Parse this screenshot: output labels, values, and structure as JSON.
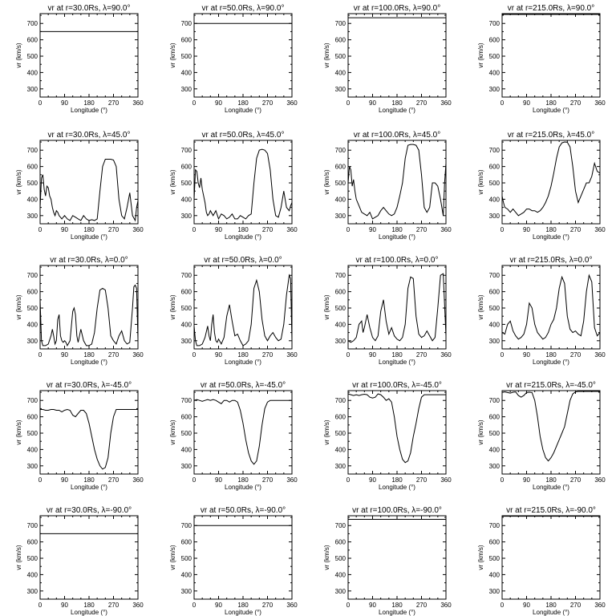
{
  "figure": {
    "x_ticks": [
      "0",
      "90",
      "180",
      "270",
      "360"
    ],
    "y_ticks": [
      "300",
      "400",
      "500",
      "600",
      "700"
    ],
    "xlabel": "Longitude (°)",
    "ylabel": "vr (km/s)"
  },
  "chart_data": [
    {
      "type": "line",
      "title": "vr at r=30.0Rs, λ=90.0°",
      "xlabel": "Longitude (°)",
      "ylabel": "vr (km/s)",
      "xlim": [
        0,
        360
      ],
      "ylim": [
        250,
        760
      ],
      "x": [
        0,
        360
      ],
      "y": [
        650,
        650
      ]
    },
    {
      "type": "line",
      "title": "vr at r=50.0Rs, λ=90.0°",
      "xlabel": "Longitude (°)",
      "ylabel": "vr (km/s)",
      "xlim": [
        0,
        360
      ],
      "ylim": [
        250,
        760
      ],
      "x": [
        0,
        360
      ],
      "y": [
        700,
        700
      ]
    },
    {
      "type": "line",
      "title": "vr at r=100.0Rs, λ=90.0°",
      "xlabel": "Longitude (°)",
      "ylabel": "vr (km/s)",
      "xlim": [
        0,
        360
      ],
      "ylim": [
        250,
        760
      ],
      "x": [
        0,
        360
      ],
      "y": [
        735,
        735
      ]
    },
    {
      "type": "line",
      "title": "vr at r=215.0Rs, λ=90.0°",
      "xlabel": "Longitude (°)",
      "ylabel": "vr (km/s)",
      "xlim": [
        0,
        360
      ],
      "ylim": [
        250,
        760
      ],
      "x": [
        0,
        360
      ],
      "y": [
        755,
        755
      ]
    },
    {
      "type": "line",
      "title": "vr at r=30.0Rs, λ=45.0°",
      "xlabel": "Longitude (°)",
      "ylabel": "vr (km/s)",
      "xlim": [
        0,
        360
      ],
      "ylim": [
        250,
        760
      ],
      "x": [
        0,
        5,
        10,
        15,
        20,
        25,
        30,
        35,
        40,
        45,
        50,
        55,
        60,
        65,
        70,
        75,
        80,
        85,
        90,
        100,
        110,
        120,
        130,
        140,
        150,
        160,
        170,
        180,
        190,
        200,
        210,
        220,
        230,
        240,
        250,
        260,
        270,
        280,
        290,
        300,
        310,
        320,
        330,
        340,
        350,
        355,
        360
      ],
      "y": [
        350,
        530,
        550,
        460,
        420,
        480,
        470,
        420,
        400,
        350,
        320,
        300,
        330,
        320,
        300,
        290,
        280,
        290,
        300,
        280,
        270,
        300,
        290,
        280,
        270,
        300,
        280,
        270,
        275,
        270,
        280,
        450,
        600,
        645,
        645,
        645,
        640,
        600,
        400,
        300,
        280,
        350,
        440,
        300,
        270,
        350,
        390
      ]
    },
    {
      "type": "line",
      "title": "vr at r=50.0Rs, λ=45.0°",
      "xlabel": "Longitude (°)",
      "ylabel": "vr (km/s)",
      "xlim": [
        0,
        360
      ],
      "ylim": [
        250,
        760
      ],
      "x": [
        0,
        5,
        10,
        15,
        20,
        25,
        30,
        35,
        40,
        45,
        50,
        55,
        60,
        70,
        80,
        90,
        100,
        110,
        120,
        130,
        140,
        150,
        160,
        170,
        180,
        190,
        200,
        210,
        220,
        230,
        240,
        250,
        260,
        270,
        280,
        290,
        300,
        310,
        320,
        330,
        340,
        350,
        355,
        360
      ],
      "y": [
        400,
        580,
        570,
        500,
        470,
        530,
        460,
        420,
        380,
        320,
        300,
        310,
        330,
        300,
        330,
        280,
        310,
        300,
        280,
        290,
        310,
        280,
        280,
        300,
        290,
        280,
        300,
        310,
        500,
        650,
        700,
        705,
        700,
        680,
        580,
        400,
        300,
        290,
        350,
        450,
        350,
        330,
        360,
        380
      ]
    },
    {
      "type": "line",
      "title": "vr at r=100.0Rs, λ=45.0°",
      "xlabel": "Longitude (°)",
      "ylabel": "vr (km/s)",
      "xlim": [
        0,
        360
      ],
      "ylim": [
        250,
        760
      ],
      "x": [
        0,
        5,
        10,
        15,
        20,
        25,
        30,
        40,
        50,
        60,
        70,
        80,
        90,
        100,
        110,
        120,
        130,
        140,
        150,
        160,
        170,
        180,
        190,
        200,
        210,
        220,
        230,
        240,
        250,
        260,
        270,
        280,
        290,
        300,
        310,
        320,
        330,
        340,
        350,
        355,
        360
      ],
      "y": [
        500,
        600,
        580,
        480,
        520,
        450,
        400,
        360,
        320,
        310,
        300,
        320,
        280,
        290,
        300,
        330,
        350,
        330,
        310,
        300,
        310,
        350,
        420,
        500,
        650,
        730,
        735,
        735,
        730,
        700,
        550,
        350,
        320,
        350,
        500,
        500,
        480,
        400,
        300,
        500,
        620
      ]
    },
    {
      "type": "line",
      "title": "vr at r=215.0Rs, λ=45.0°",
      "xlabel": "Longitude (°)",
      "ylabel": "vr (km/s)",
      "xlim": [
        0,
        360
      ],
      "ylim": [
        250,
        760
      ],
      "x": [
        0,
        5,
        10,
        20,
        30,
        40,
        50,
        60,
        70,
        80,
        90,
        100,
        110,
        120,
        130,
        140,
        150,
        160,
        170,
        180,
        190,
        200,
        210,
        220,
        230,
        240,
        250,
        260,
        270,
        280,
        290,
        300,
        310,
        320,
        330,
        340,
        350,
        360
      ],
      "y": [
        420,
        380,
        350,
        340,
        320,
        340,
        320,
        300,
        310,
        320,
        340,
        340,
        330,
        330,
        320,
        330,
        350,
        380,
        420,
        480,
        560,
        650,
        720,
        745,
        750,
        748,
        720,
        600,
        450,
        380,
        420,
        460,
        500,
        500,
        540,
        620,
        570,
        560
      ]
    },
    {
      "type": "line",
      "title": "vr at r=30.0Rs, λ=0.0°",
      "xlabel": "Longitude (°)",
      "ylabel": "vr (km/s)",
      "xlim": [
        0,
        360
      ],
      "ylim": [
        250,
        760
      ],
      "x": [
        0,
        5,
        10,
        20,
        30,
        40,
        45,
        50,
        55,
        60,
        65,
        70,
        75,
        80,
        85,
        90,
        95,
        100,
        110,
        120,
        125,
        130,
        135,
        140,
        145,
        150,
        160,
        170,
        180,
        190,
        200,
        210,
        220,
        230,
        240,
        250,
        260,
        270,
        280,
        290,
        300,
        310,
        320,
        330,
        340,
        345,
        350,
        355,
        360
      ],
      "y": [
        550,
        300,
        270,
        270,
        280,
        330,
        370,
        330,
        280,
        300,
        430,
        460,
        330,
        300,
        290,
        300,
        290,
        270,
        300,
        480,
        500,
        460,
        330,
        290,
        330,
        370,
        300,
        270,
        270,
        280,
        350,
        500,
        610,
        620,
        610,
        500,
        330,
        300,
        280,
        330,
        360,
        300,
        280,
        290,
        500,
        630,
        640,
        620,
        310
      ]
    },
    {
      "type": "line",
      "title": "vr at r=50.0Rs, λ=0.0°",
      "xlabel": "Longitude (°)",
      "ylabel": "vr (km/s)",
      "xlim": [
        0,
        360
      ],
      "ylim": [
        250,
        760
      ],
      "x": [
        0,
        5,
        10,
        20,
        30,
        40,
        50,
        55,
        60,
        65,
        70,
        75,
        80,
        85,
        90,
        100,
        110,
        120,
        130,
        140,
        150,
        160,
        170,
        180,
        190,
        200,
        210,
        220,
        230,
        240,
        250,
        260,
        270,
        280,
        290,
        300,
        310,
        320,
        330,
        340,
        350,
        355,
        360
      ],
      "y": [
        390,
        300,
        270,
        270,
        280,
        320,
        390,
        330,
        300,
        400,
        460,
        350,
        300,
        290,
        310,
        280,
        320,
        450,
        520,
        420,
        330,
        340,
        300,
        270,
        280,
        300,
        400,
        620,
        670,
        600,
        430,
        330,
        300,
        330,
        350,
        320,
        300,
        310,
        400,
        580,
        700,
        680,
        300
      ]
    },
    {
      "type": "line",
      "title": "vr at r=100.0Rs, λ=0.0°",
      "xlabel": "Longitude (°)",
      "ylabel": "vr (km/s)",
      "xlim": [
        0,
        360
      ],
      "ylim": [
        250,
        760
      ],
      "x": [
        0,
        10,
        20,
        30,
        40,
        50,
        55,
        60,
        70,
        80,
        90,
        100,
        110,
        120,
        130,
        140,
        150,
        160,
        170,
        180,
        190,
        200,
        210,
        220,
        230,
        240,
        250,
        260,
        270,
        280,
        290,
        300,
        310,
        320,
        330,
        340,
        350,
        360
      ],
      "y": [
        300,
        290,
        300,
        320,
        400,
        420,
        350,
        380,
        460,
        380,
        320,
        300,
        330,
        480,
        550,
        420,
        340,
        380,
        330,
        310,
        300,
        320,
        400,
        620,
        690,
        680,
        450,
        340,
        320,
        330,
        360,
        330,
        300,
        320,
        500,
        700,
        710,
        330
      ]
    },
    {
      "type": "line",
      "title": "vr at r=215.0Rs, λ=0.0°",
      "xlabel": "Longitude (°)",
      "ylabel": "vr (km/s)",
      "xlim": [
        0,
        360
      ],
      "ylim": [
        250,
        760
      ],
      "x": [
        0,
        10,
        20,
        30,
        40,
        50,
        60,
        70,
        80,
        90,
        100,
        110,
        120,
        130,
        140,
        150,
        160,
        170,
        180,
        190,
        200,
        210,
        220,
        230,
        240,
        250,
        260,
        270,
        280,
        290,
        300,
        310,
        320,
        330,
        340,
        350,
        360
      ],
      "y": [
        350,
        340,
        400,
        420,
        360,
        330,
        310,
        320,
        340,
        400,
        530,
        500,
        400,
        350,
        330,
        310,
        320,
        350,
        400,
        430,
        500,
        620,
        690,
        650,
        450,
        370,
        350,
        360,
        340,
        330,
        420,
        600,
        700,
        660,
        380,
        330,
        350
      ]
    },
    {
      "type": "line",
      "title": "vr at r=30.0Rs, λ=-45.0°",
      "xlabel": "Longitude (°)",
      "ylabel": "vr (km/s)",
      "xlim": [
        0,
        360
      ],
      "ylim": [
        250,
        760
      ],
      "x": [
        0,
        10,
        20,
        30,
        40,
        50,
        60,
        70,
        80,
        90,
        100,
        110,
        120,
        130,
        140,
        150,
        160,
        170,
        180,
        190,
        200,
        210,
        220,
        230,
        240,
        250,
        260,
        270,
        280,
        290,
        300,
        310,
        320,
        330,
        340,
        350,
        360
      ],
      "y": [
        645,
        645,
        640,
        640,
        645,
        645,
        640,
        640,
        630,
        640,
        645,
        640,
        610,
        600,
        620,
        640,
        640,
        620,
        560,
        480,
        400,
        340,
        300,
        280,
        290,
        350,
        500,
        600,
        645,
        645,
        645,
        645,
        645,
        645,
        645,
        645,
        645
      ]
    },
    {
      "type": "line",
      "title": "vr at r=50.0Rs, λ=-45.0°",
      "xlabel": "Longitude (°)",
      "ylabel": "vr (km/s)",
      "xlim": [
        0,
        360
      ],
      "ylim": [
        250,
        760
      ],
      "x": [
        0,
        10,
        20,
        30,
        40,
        50,
        60,
        70,
        80,
        90,
        100,
        110,
        120,
        130,
        140,
        150,
        160,
        170,
        180,
        190,
        200,
        210,
        220,
        230,
        240,
        250,
        260,
        270,
        280,
        290,
        300,
        310,
        320,
        330,
        340,
        350,
        360
      ],
      "y": [
        700,
        705,
        700,
        695,
        700,
        705,
        700,
        705,
        700,
        690,
        680,
        700,
        700,
        690,
        700,
        700,
        690,
        640,
        560,
        460,
        380,
        330,
        310,
        330,
        420,
        550,
        650,
        690,
        700,
        700,
        700,
        700,
        700,
        700,
        700,
        700,
        700
      ]
    },
    {
      "type": "line",
      "title": "vr at r=100.0Rs, λ=-45.0°",
      "xlabel": "Longitude (°)",
      "ylabel": "vr (km/s)",
      "xlim": [
        0,
        360
      ],
      "ylim": [
        250,
        760
      ],
      "x": [
        0,
        10,
        20,
        30,
        40,
        50,
        60,
        70,
        80,
        90,
        100,
        110,
        120,
        130,
        140,
        150,
        160,
        170,
        180,
        190,
        200,
        210,
        220,
        230,
        240,
        250,
        260,
        270,
        280,
        290,
        300,
        310,
        320,
        330,
        340,
        350,
        360
      ],
      "y": [
        740,
        735,
        730,
        735,
        730,
        735,
        738,
        735,
        720,
        715,
        720,
        740,
        735,
        720,
        700,
        710,
        690,
        600,
        480,
        400,
        340,
        320,
        330,
        380,
        480,
        560,
        650,
        720,
        735,
        735,
        735,
        735,
        735,
        735,
        735,
        735,
        735
      ]
    },
    {
      "type": "line",
      "title": "vr at r=215.0Rs, λ=-45.0°",
      "xlabel": "Longitude (°)",
      "ylabel": "vr (km/s)",
      "xlim": [
        0,
        360
      ],
      "ylim": [
        250,
        760
      ],
      "x": [
        0,
        10,
        20,
        30,
        40,
        50,
        60,
        70,
        80,
        90,
        100,
        110,
        120,
        130,
        140,
        150,
        160,
        170,
        180,
        190,
        200,
        210,
        220,
        230,
        240,
        250,
        260,
        270,
        280,
        290,
        300,
        310,
        320,
        330,
        340,
        350,
        360
      ],
      "y": [
        750,
        752,
        748,
        745,
        750,
        752,
        730,
        720,
        730,
        748,
        750,
        748,
        700,
        600,
        480,
        400,
        350,
        330,
        350,
        380,
        420,
        460,
        500,
        540,
        620,
        700,
        740,
        752,
        755,
        755,
        755,
        755,
        755,
        755,
        755,
        755,
        755
      ]
    },
    {
      "type": "line",
      "title": "vr at r=30.0Rs, λ=-90.0°",
      "xlabel": "Longitude (°)",
      "ylabel": "vr (km/s)",
      "xlim": [
        0,
        360
      ],
      "ylim": [
        250,
        760
      ],
      "x": [
        0,
        360
      ],
      "y": [
        650,
        650
      ]
    },
    {
      "type": "line",
      "title": "vr at r=50.0Rs, λ=-90.0°",
      "xlabel": "Longitude (°)",
      "ylabel": "vr (km/s)",
      "xlim": [
        0,
        360
      ],
      "ylim": [
        250,
        760
      ],
      "x": [
        0,
        360
      ],
      "y": [
        700,
        700
      ]
    },
    {
      "type": "line",
      "title": "vr at r=100.0Rs, λ=-90.0°",
      "xlabel": "Longitude (°)",
      "ylabel": "vr (km/s)",
      "xlim": [
        0,
        360
      ],
      "ylim": [
        250,
        760
      ],
      "x": [
        0,
        360
      ],
      "y": [
        738,
        738
      ]
    },
    {
      "type": "line",
      "title": "vr at r=215.0Rs, λ=-90.0°",
      "xlabel": "Longitude (°)",
      "ylabel": "vr (km/s)",
      "xlim": [
        0,
        360
      ],
      "ylim": [
        250,
        760
      ],
      "x": [
        0,
        360
      ],
      "y": [
        757,
        757
      ]
    }
  ]
}
